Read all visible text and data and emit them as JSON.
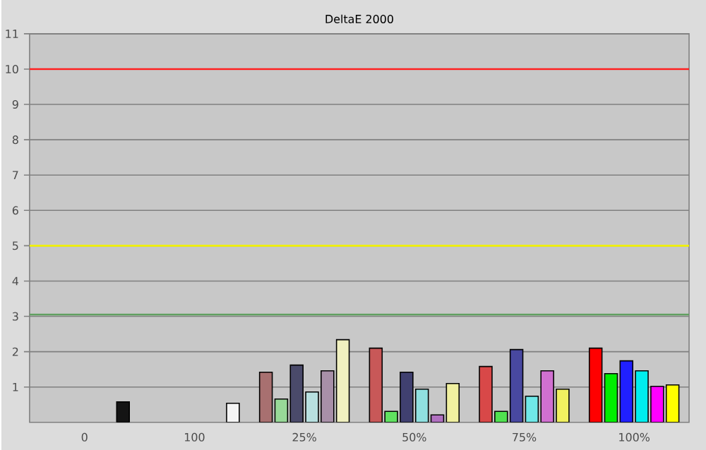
{
  "chart_data": {
    "type": "bar",
    "title": "DeltaE 2000",
    "categories": [
      "0",
      "100",
      "25%",
      "50%",
      "75%",
      "100%"
    ],
    "series": [
      {
        "colors": [
          "#b05050",
          "#b05050",
          "#a87070",
          "#c85858",
          "#d84848",
          "#ff0000"
        ],
        "values": [
          null,
          null,
          1.42,
          2.1,
          1.58,
          2.1
        ]
      },
      {
        "colors": [
          "#50b050",
          "#50b050",
          "#98d898",
          "#60e060",
          "#50e050",
          "#00ee00"
        ],
        "values": [
          null,
          null,
          0.66,
          0.31,
          0.31,
          1.38
        ]
      },
      {
        "colors": [
          "#404080",
          "#404080",
          "#4a4a6a",
          "#404070",
          "#4848a0",
          "#2020ff"
        ],
        "values": [
          null,
          null,
          1.62,
          1.42,
          2.06,
          1.74
        ]
      },
      {
        "colors": [
          "#80d0d0",
          "#80d0d0",
          "#b8e0e0",
          "#90e0e0",
          "#70e8e8",
          "#00eeee"
        ],
        "values": [
          null,
          null,
          0.86,
          0.94,
          0.74,
          1.46
        ]
      },
      {
        "colors": [
          "#b070b0",
          "#b070b0",
          "#a890a8",
          "#b070c0",
          "#d070d0",
          "#ff00ff"
        ],
        "values": [
          null,
          null,
          1.46,
          0.21,
          1.46,
          1.02
        ]
      },
      {
        "colors": [
          "#141414",
          "#f4f4f4",
          "#f0f0c0",
          "#f0f0a0",
          "#f0f060",
          "#ffff00"
        ],
        "values": [
          0.58,
          0.54,
          2.34,
          1.1,
          0.94,
          1.06
        ]
      }
    ],
    "ylim": [
      0,
      11
    ],
    "yticks": [
      1,
      2,
      3,
      4,
      5,
      6,
      7,
      8,
      9,
      10,
      11
    ],
    "grid": "y",
    "ref_lines": [
      {
        "axis": "y",
        "value": 10,
        "color": "#ff2020"
      },
      {
        "axis": "y",
        "value": 5,
        "color": "#f0f000"
      },
      {
        "axis": "y",
        "value": 3.05,
        "color": "#60a060"
      }
    ]
  }
}
